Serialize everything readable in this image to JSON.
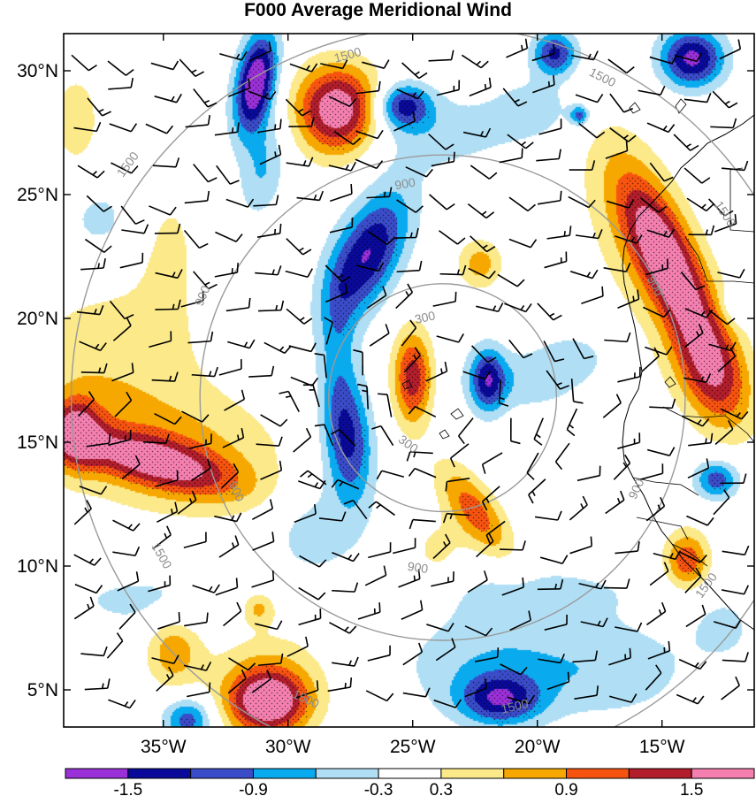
{
  "chart_data": {
    "type": "heatmap",
    "title": "F000 Average Meridional Wind",
    "projection": "latitude-longitude map with filled contours, wind barbs and concentric circles",
    "lon_range": [
      -39,
      -11.3
    ],
    "lat_range": [
      3.5,
      31.5
    ],
    "lon_ticks": [
      {
        "value": -35,
        "label": "35°W"
      },
      {
        "value": -30,
        "label": "30°W"
      },
      {
        "value": -25,
        "label": "25°W"
      },
      {
        "value": -20,
        "label": "20°W"
      },
      {
        "value": -15,
        "label": "15°W"
      }
    ],
    "lat_ticks": [
      {
        "value": 30,
        "label": "30°N"
      },
      {
        "value": 25,
        "label": "25°N"
      },
      {
        "value": 20,
        "label": "20°N"
      },
      {
        "value": 15,
        "label": "15°N"
      },
      {
        "value": 10,
        "label": "10°N"
      },
      {
        "value": 5,
        "label": "5°N"
      }
    ],
    "colorbar": {
      "levels": [
        -1.8,
        -1.5,
        -1.2,
        -0.9,
        -0.6,
        -0.3,
        0.3,
        0.6,
        0.9,
        1.2,
        1.5,
        1.8
      ],
      "colors": [
        "#9a30d8",
        "#0a0a9a",
        "#3a4cc8",
        "#0aaaee",
        "#b0dff5",
        "#ffffff",
        "#fbe98a",
        "#f6a800",
        "#f75310",
        "#b21e2c",
        "#f580b0"
      ],
      "labels": [
        {
          "value": -1.5,
          "label": "-1.5"
        },
        {
          "value": -0.9,
          "label": "-0.9"
        },
        {
          "value": -0.3,
          "label": "-0.3"
        },
        {
          "value": 0.3,
          "label": "0.3"
        },
        {
          "value": 0.9,
          "label": "0.9"
        },
        {
          "value": 1.5,
          "label": "1.5"
        }
      ]
    },
    "range_rings": {
      "center": {
        "lon": -23.8,
        "lat": 16.8
      },
      "rings": [
        {
          "label": "300",
          "radius_deg": 4.6
        },
        {
          "label": "900",
          "radius_deg": 9.8
        },
        {
          "label": "1500",
          "radius_deg": 15.0
        }
      ],
      "ring_labels": [
        {
          "text": "300",
          "lon": -24.5,
          "lat": 20.0
        },
        {
          "text": "300",
          "lon": -25.2,
          "lat": 14.9
        },
        {
          "text": "900",
          "lon": -25.3,
          "lat": 25.4
        },
        {
          "text": "900",
          "lon": -33.4,
          "lat": 20.9
        },
        {
          "text": "900",
          "lon": -15.3,
          "lat": 21.3
        },
        {
          "text": "900",
          "lon": -32.1,
          "lat": 13.0
        },
        {
          "text": "900",
          "lon": -16.0,
          "lat": 13.1
        },
        {
          "text": "900",
          "lon": -24.8,
          "lat": 9.9
        },
        {
          "text": "1500",
          "lon": -27.6,
          "lat": 30.6
        },
        {
          "text": "1500",
          "lon": -17.4,
          "lat": 29.7
        },
        {
          "text": "1500",
          "lon": -36.4,
          "lat": 26.2
        },
        {
          "text": "1500",
          "lon": -12.5,
          "lat": 24.2
        },
        {
          "text": "1500",
          "lon": -35.1,
          "lat": 10.4
        },
        {
          "text": "1500",
          "lon": -13.2,
          "lat": 9.2
        },
        {
          "text": "1500",
          "lon": -29.3,
          "lat": 4.6
        },
        {
          "text": "1500",
          "lon": -20.9,
          "lat": 4.3
        }
      ]
    },
    "field": {
      "description": "meridional wind anomaly features (center lon, center lat, lon radius, lat radius, rotation degrees, peak value)",
      "features": [
        {
          "lon": -31.3,
          "lat": 29.5,
          "rx": 0.8,
          "ry": 2.1,
          "rot": -10,
          "amp": -1.9
        },
        {
          "lon": -31.0,
          "lat": 26.0,
          "rx": 0.9,
          "ry": 2.0,
          "rot": -10,
          "amp": -0.6
        },
        {
          "lon": -28.0,
          "lat": 28.4,
          "rx": 1.7,
          "ry": 1.8,
          "rot": 0,
          "amp": 1.9
        },
        {
          "lon": -25.4,
          "lat": 28.6,
          "rx": 1.1,
          "ry": 0.9,
          "rot": 0,
          "amp": -1.25
        },
        {
          "lon": -24.0,
          "lat": 27.5,
          "rx": 3.5,
          "ry": 1.6,
          "rot": 0,
          "amp": -0.45
        },
        {
          "lon": -20.0,
          "lat": 28.5,
          "rx": 1.8,
          "ry": 1.3,
          "rot": 0,
          "amp": -0.45
        },
        {
          "lon": -19.3,
          "lat": 30.7,
          "rx": 0.9,
          "ry": 0.9,
          "rot": 0,
          "amp": -1.3
        },
        {
          "lon": -18.3,
          "lat": 28.2,
          "rx": 0.4,
          "ry": 0.4,
          "rot": 0,
          "amp": -1.0
        },
        {
          "lon": -13.8,
          "lat": 30.5,
          "rx": 1.3,
          "ry": 1.2,
          "rot": 0,
          "amp": -1.6
        },
        {
          "lon": -14.8,
          "lat": 22.3,
          "rx": 1.2,
          "ry": 3.8,
          "rot": 25,
          "amp": 1.7
        },
        {
          "lon": -13.0,
          "lat": 17.8,
          "rx": 1.4,
          "ry": 2.5,
          "rot": 20,
          "amp": 1.3
        },
        {
          "lon": -16.0,
          "lat": 23.5,
          "rx": 2.4,
          "ry": 5.0,
          "rot": 20,
          "amp": 0.4
        },
        {
          "lon": -12.0,
          "lat": 20.5,
          "rx": 0.7,
          "ry": 0.7,
          "rot": 0,
          "amp": -0.4
        },
        {
          "lon": -12.8,
          "lat": 13.5,
          "rx": 0.9,
          "ry": 0.8,
          "rot": 0,
          "amp": -1.1
        },
        {
          "lon": -14.0,
          "lat": 10.2,
          "rx": 0.9,
          "ry": 1.2,
          "rot": 0,
          "amp": 1.15
        },
        {
          "lon": -26.8,
          "lat": 22.6,
          "rx": 1.3,
          "ry": 2.8,
          "rot": -25,
          "amp": -1.5
        },
        {
          "lon": -28.0,
          "lat": 19.0,
          "rx": 0.8,
          "ry": 3.0,
          "rot": 0,
          "amp": -0.5
        },
        {
          "lon": -27.6,
          "lat": 15.1,
          "rx": 1.0,
          "ry": 2.6,
          "rot": 5,
          "amp": -1.3
        },
        {
          "lon": -29.0,
          "lat": 11.5,
          "rx": 2.0,
          "ry": 2.0,
          "rot": 0,
          "amp": -0.5
        },
        {
          "lon": -25.0,
          "lat": 17.6,
          "rx": 0.8,
          "ry": 1.9,
          "rot": 0,
          "amp": 1.4
        },
        {
          "lon": -22.0,
          "lat": 17.5,
          "rx": 0.7,
          "ry": 1.3,
          "rot": 0,
          "amp": -1.2
        },
        {
          "lon": -20.5,
          "lat": 17.5,
          "rx": 2.5,
          "ry": 1.3,
          "rot": 0,
          "amp": -0.5
        },
        {
          "lon": -18.5,
          "lat": 18.5,
          "rx": 1.3,
          "ry": 0.9,
          "rot": 0,
          "amp": -0.4
        },
        {
          "lon": -22.3,
          "lat": 22.2,
          "rx": 0.9,
          "ry": 1.0,
          "rot": 0,
          "amp": 0.75
        },
        {
          "lon": -22.5,
          "lat": 12.2,
          "rx": 0.9,
          "ry": 2.2,
          "rot": 35,
          "amp": 1.05
        },
        {
          "lon": -24.0,
          "lat": 10.5,
          "rx": 1.2,
          "ry": 1.5,
          "rot": 0,
          "amp": 0.4
        },
        {
          "lon": -35.3,
          "lat": 14.2,
          "rx": 3.5,
          "ry": 1.0,
          "rot": -15,
          "amp": 1.25
        },
        {
          "lon": -38.5,
          "lat": 15.4,
          "rx": 1.0,
          "ry": 1.4,
          "rot": 0,
          "amp": 1.3
        },
        {
          "lon": -35.0,
          "lat": 14.8,
          "rx": 5.0,
          "ry": 2.7,
          "rot": -10,
          "amp": 0.72
        },
        {
          "lon": -37.0,
          "lat": 19.0,
          "rx": 3.5,
          "ry": 2.5,
          "rot": 0,
          "amp": 0.45
        },
        {
          "lon": -34.8,
          "lat": 23.0,
          "rx": 1.5,
          "ry": 3.0,
          "rot": 0,
          "amp": 0.35
        },
        {
          "lon": -38.5,
          "lat": 28.0,
          "rx": 1.0,
          "ry": 2.0,
          "rot": 0,
          "amp": 0.5
        },
        {
          "lon": -37.5,
          "lat": 24.0,
          "rx": 1.5,
          "ry": 1.5,
          "rot": 0,
          "amp": -0.4
        },
        {
          "lon": -30.8,
          "lat": 4.5,
          "rx": 1.6,
          "ry": 1.3,
          "rot": 0,
          "amp": 1.7
        },
        {
          "lon": -30.8,
          "lat": 5.5,
          "rx": 2.5,
          "ry": 2.2,
          "rot": 0,
          "amp": 0.5
        },
        {
          "lon": -34.6,
          "lat": 6.6,
          "rx": 1.1,
          "ry": 1.5,
          "rot": 0,
          "amp": 0.8
        },
        {
          "lon": -31.2,
          "lat": 8.3,
          "rx": 0.7,
          "ry": 0.7,
          "rot": 0,
          "amp": 0.7
        },
        {
          "lon": -35.5,
          "lat": 8.6,
          "rx": 4.0,
          "ry": 1.3,
          "rot": 0,
          "amp": -0.4
        },
        {
          "lon": -34.0,
          "lat": 3.8,
          "rx": 1.0,
          "ry": 0.9,
          "rot": 0,
          "amp": -1.1
        },
        {
          "lon": -21.5,
          "lat": 4.6,
          "rx": 1.6,
          "ry": 1.0,
          "rot": 0,
          "amp": -1.2
        },
        {
          "lon": -21.5,
          "lat": 6.0,
          "rx": 4.0,
          "ry": 2.2,
          "rot": 0,
          "amp": -0.6
        },
        {
          "lon": -16.5,
          "lat": 5.8,
          "rx": 3.0,
          "ry": 2.0,
          "rot": 0,
          "amp": -0.4
        },
        {
          "lon": -20.0,
          "lat": 9.0,
          "rx": 5.0,
          "ry": 1.2,
          "rot": 0,
          "amp": -0.35
        },
        {
          "lon": -12.5,
          "lat": 7.5,
          "rx": 1.5,
          "ry": 1.5,
          "rot": 0,
          "amp": -0.35
        }
      ]
    },
    "wind_barbs": "field of wind barbs across the domain (predominantly easterly trade winds, ~10 kt)"
  }
}
